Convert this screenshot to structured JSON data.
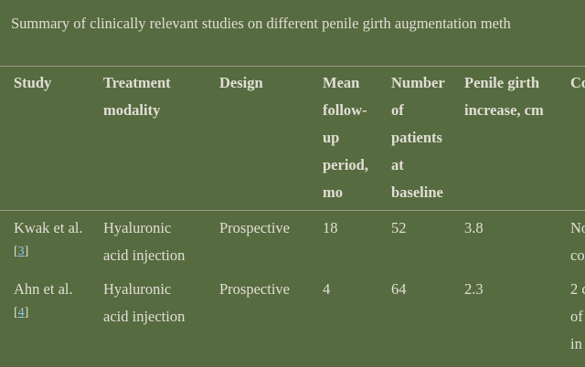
{
  "caption": "Summary of clinically relevant studies on different penile girth augmentation meth",
  "colors": {
    "background": "#566b3f",
    "text": "#e2ded6",
    "link": "#8fc6ee",
    "rule": "#9c9a8c"
  },
  "table": {
    "headers": [
      [
        "Study"
      ],
      [
        "Treatment",
        "modality"
      ],
      [
        "Design"
      ],
      [
        "Mean",
        "follow-",
        "up",
        "period,",
        "mo"
      ],
      [
        "Number",
        "of",
        "patients",
        "at",
        "baseline"
      ],
      [
        "Penile girth",
        "increase, cm"
      ],
      [
        "Co"
      ]
    ],
    "rows": [
      {
        "study": "Kwak et al.",
        "ref": "3",
        "modality": [
          "Hyaluronic",
          "acid injection"
        ],
        "design": "Prospective",
        "followup": "18",
        "patients": "52",
        "increase": "3.8",
        "complications": [
          "No",
          "co"
        ]
      },
      {
        "study": "Ahn et al.",
        "ref": "4",
        "modality": [
          "Hyaluronic",
          "acid injection"
        ],
        "design": "Prospective",
        "followup": "4",
        "patients": "64",
        "increase": "2.3",
        "complications": [
          "2 c",
          "of",
          "in"
        ]
      }
    ]
  }
}
